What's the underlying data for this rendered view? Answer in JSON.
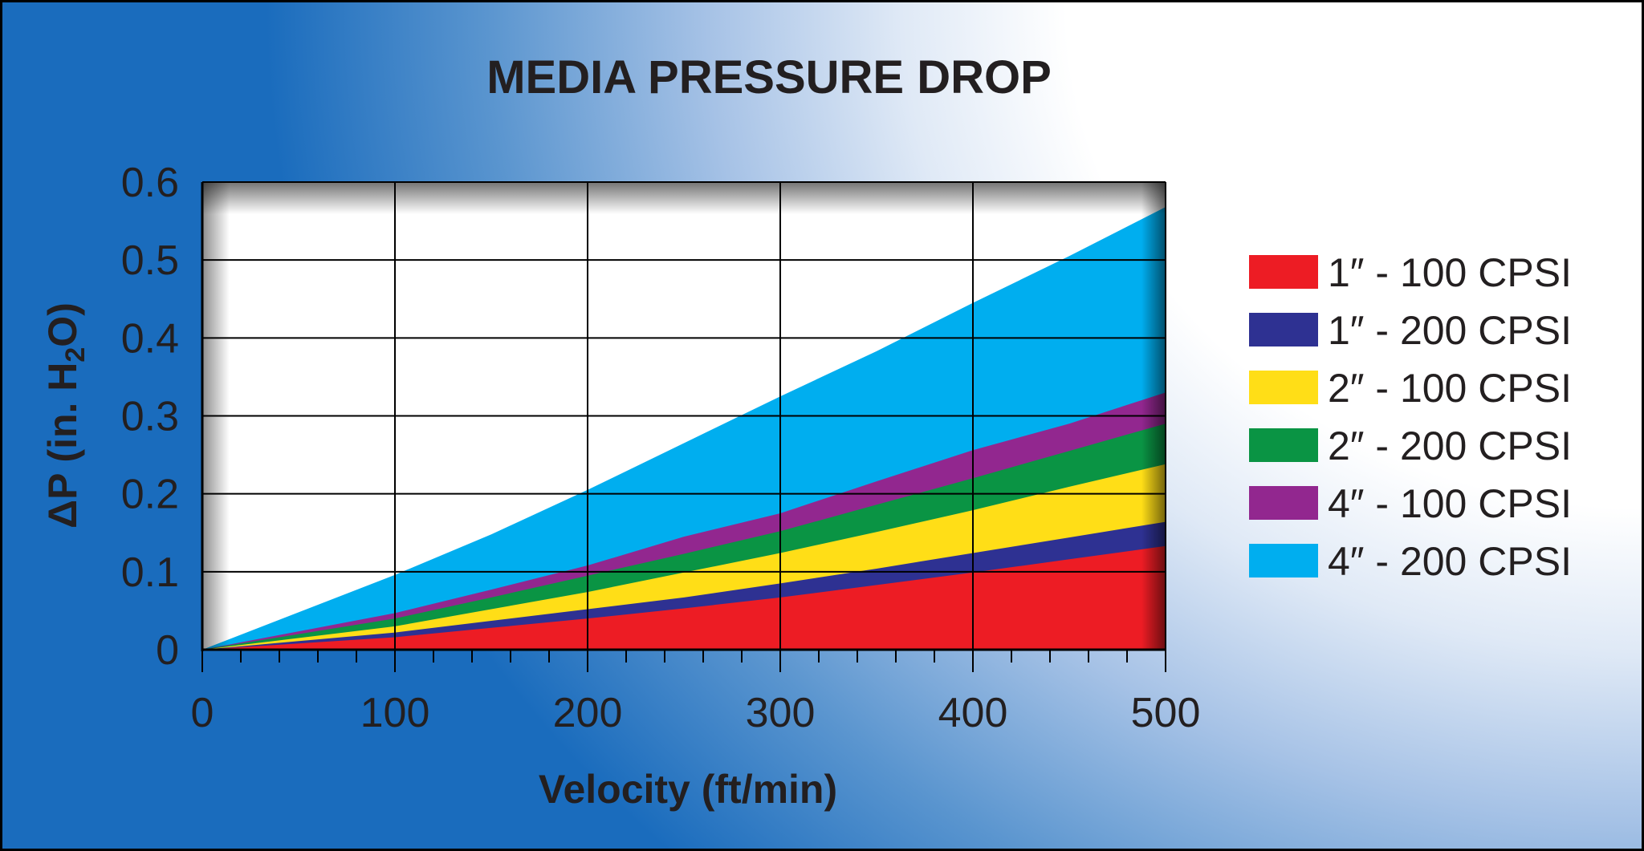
{
  "chart_data": {
    "type": "area",
    "title": "MEDIA PRESSURE DROP",
    "xlabel": "Velocity (ft/min)",
    "ylabel": {
      "prefix": "ΔP (in. H",
      "subscript": "2",
      "suffix": "O)"
    },
    "xlim": [
      0,
      500
    ],
    "ylim": [
      0,
      0.6
    ],
    "x_ticks": [
      "0",
      "100",
      "200",
      "300",
      "400",
      "500"
    ],
    "y_ticks": [
      "0",
      "0.1",
      "0.2",
      "0.3",
      "0.4",
      "0.5",
      "0.6"
    ],
    "grid": true,
    "legend_position": "right",
    "x": [
      0,
      100,
      150,
      200,
      250,
      300,
      350,
      400,
      450,
      500
    ],
    "series": [
      {
        "name": "1″ - 100 CPSI",
        "color": "#ed1c24",
        "values": [
          0,
          0.016,
          0.028,
          0.04,
          0.053,
          0.067,
          0.083,
          0.099,
          0.116,
          0.133
        ]
      },
      {
        "name": "1″ - 200 CPSI",
        "color": "#2e3192",
        "values": [
          0,
          0.022,
          0.037,
          0.052,
          0.067,
          0.085,
          0.104,
          0.124,
          0.144,
          0.164
        ]
      },
      {
        "name": "2″ - 100 CPSI",
        "color": "#ffde17",
        "values": [
          0,
          0.03,
          0.052,
          0.074,
          0.099,
          0.124,
          0.151,
          0.179,
          0.209,
          0.238
        ]
      },
      {
        "name": "2″ - 200 CPSI",
        "color": "#0a9444",
        "values": [
          0,
          0.04,
          0.067,
          0.095,
          0.123,
          0.152,
          0.186,
          0.22,
          0.255,
          0.29
        ]
      },
      {
        "name": "4″ - 100 CPSI",
        "color": "#92278f",
        "values": [
          0,
          0.047,
          0.077,
          0.108,
          0.145,
          0.175,
          0.216,
          0.256,
          0.29,
          0.33
        ]
      },
      {
        "name": "4″ - 200 CPSI",
        "color": "#00aeef",
        "values": [
          0,
          0.096,
          0.148,
          0.205,
          0.265,
          0.325,
          0.383,
          0.445,
          0.505,
          0.568
        ]
      }
    ]
  }
}
